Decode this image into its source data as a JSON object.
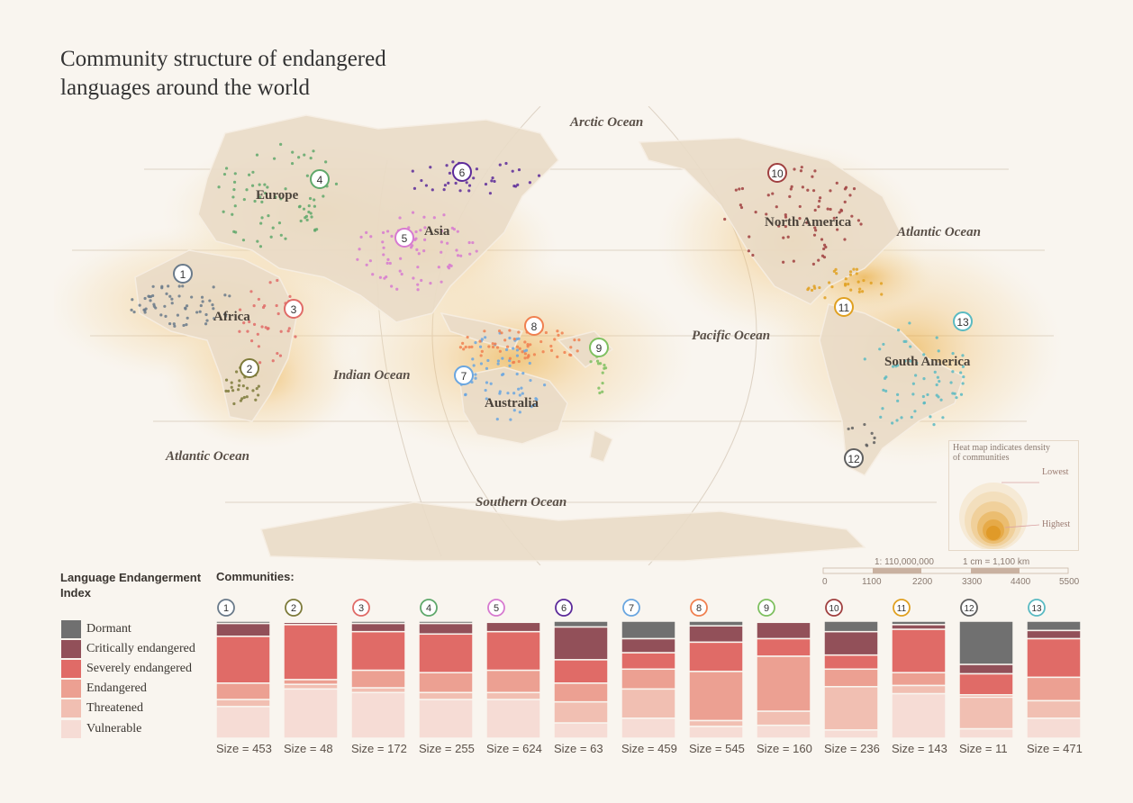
{
  "title_lines": [
    "Community structure of endangered",
    "languages around the world"
  ],
  "map": {
    "oceans": [
      "Arctic Ocean",
      "Atlantic Ocean",
      "Pacific Ocean",
      "Indian Ocean",
      "Atlantic Ocean",
      "Southern Ocean"
    ],
    "continents": [
      "Europe",
      "Asia",
      "Africa",
      "Australia",
      "North America",
      "South America"
    ]
  },
  "heat_legend": {
    "title_lines": [
      "Heat map indicates density",
      "of communities"
    ],
    "lowest": "Lowest",
    "highest": "Highest"
  },
  "scale": {
    "ratio": "1: 110,000,000",
    "unit": "1 cm = 1,100 km",
    "ticks": [
      "0",
      "1100",
      "2200",
      "3300",
      "4400",
      "5500"
    ]
  },
  "legend": {
    "title": "Language Endangerment Index",
    "items": [
      {
        "label": "Dormant",
        "color": "#707070"
      },
      {
        "label": "Critically endangered",
        "color": "#925059"
      },
      {
        "label": "Severely endangered",
        "color": "#e06b67"
      },
      {
        "label": "Endangered",
        "color": "#eca092"
      },
      {
        "label": "Threatened",
        "color": "#f1bfb2"
      },
      {
        "label": "Vulnerable",
        "color": "#f6dcd5"
      }
    ]
  },
  "communities_title": "Communities:",
  "chart_data": {
    "type": "bar",
    "stacked": true,
    "normalized": true,
    "categories": [
      "1",
      "2",
      "3",
      "4",
      "5",
      "6",
      "7",
      "8",
      "9",
      "10",
      "11",
      "12",
      "13"
    ],
    "category_colors": [
      "#6a7a8a",
      "#7d7a3a",
      "#e06b67",
      "#5fa86b",
      "#d77ad0",
      "#5c2a9a",
      "#6aa6e0",
      "#f08050",
      "#7fc060",
      "#a04040",
      "#e0a020",
      "#606060",
      "#5abac2"
    ],
    "sizes": [
      "Size = 453",
      "Size = 48",
      "Size = 172",
      "Size = 255",
      "Size = 624",
      "Size = 63",
      "Size = 459",
      "Size = 545",
      "Size = 160",
      "Size = 236",
      "Size = 143",
      "Size = 11",
      "Size = 471"
    ],
    "series": [
      {
        "name": "Dormant",
        "values": [
          0.02,
          0.01,
          0.02,
          0.02,
          0.01,
          0.05,
          0.15,
          0.04,
          0.01,
          0.09,
          0.03,
          0.37,
          0.08
        ]
      },
      {
        "name": "Critically endangered",
        "values": [
          0.11,
          0.02,
          0.07,
          0.09,
          0.08,
          0.28,
          0.12,
          0.14,
          0.14,
          0.2,
          0.04,
          0.08,
          0.07
        ]
      },
      {
        "name": "Severely endangered",
        "values": [
          0.4,
          0.47,
          0.33,
          0.33,
          0.33,
          0.2,
          0.14,
          0.25,
          0.15,
          0.12,
          0.37,
          0.18,
          0.33
        ]
      },
      {
        "name": "Endangered",
        "values": [
          0.14,
          0.04,
          0.15,
          0.17,
          0.19,
          0.16,
          0.17,
          0.42,
          0.47,
          0.15,
          0.11,
          0.02,
          0.2
        ]
      },
      {
        "name": "Threatened",
        "values": [
          0.06,
          0.04,
          0.04,
          0.06,
          0.06,
          0.18,
          0.25,
          0.05,
          0.12,
          0.37,
          0.07,
          0.27,
          0.15
        ]
      },
      {
        "name": "Vulnerable",
        "values": [
          0.27,
          0.42,
          0.39,
          0.33,
          0.33,
          0.13,
          0.17,
          0.1,
          0.11,
          0.07,
          0.38,
          0.08,
          0.17
        ]
      }
    ]
  }
}
